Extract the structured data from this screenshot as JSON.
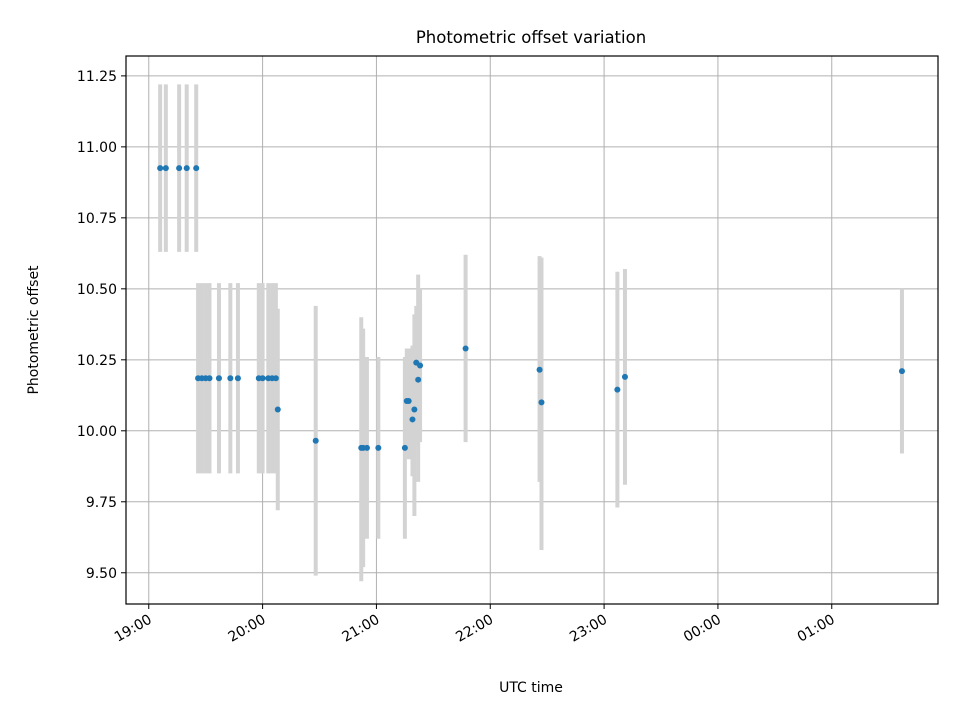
{
  "chart_data": {
    "type": "scatter",
    "title": "Photometric offset variation",
    "xlabel": "UTC time",
    "ylabel": "Photometric offset",
    "x_axis": "time",
    "xlim": [
      "18:48",
      "01:56"
    ],
    "ylim": [
      9.39,
      11.32
    ],
    "grid": true,
    "x_ticks": [
      {
        "value": "19:00",
        "label": "19:00"
      },
      {
        "value": "20:00",
        "label": "20:00"
      },
      {
        "value": "21:00",
        "label": "21:00"
      },
      {
        "value": "22:00",
        "label": "22:00"
      },
      {
        "value": "23:00",
        "label": "23:00"
      },
      {
        "value": "00:00",
        "label": "00:00"
      },
      {
        "value": "01:00",
        "label": "01:00"
      }
    ],
    "y_ticks": [
      9.5,
      9.75,
      10.0,
      10.25,
      10.5,
      10.75,
      11.0,
      11.25
    ],
    "y_tick_labels": [
      "9.50",
      "9.75",
      "10.00",
      "10.25",
      "10.50",
      "10.75",
      "11.00",
      "11.25"
    ],
    "series": [
      {
        "marker_color": "#1f77b4",
        "errorbar_color": "#d3d3d3",
        "points": [
          {
            "t": "19:06",
            "y": 10.925,
            "lo": 10.63,
            "hi": 11.22
          },
          {
            "t": "19:09",
            "y": 10.925,
            "lo": 10.63,
            "hi": 11.22
          },
          {
            "t": "19:16",
            "y": 10.925,
            "lo": 10.63,
            "hi": 11.22
          },
          {
            "t": "19:20",
            "y": 10.925,
            "lo": 10.63,
            "hi": 11.22
          },
          {
            "t": "19:25",
            "y": 10.925,
            "lo": 10.63,
            "hi": 11.22
          },
          {
            "t": "19:26",
            "y": 10.185,
            "lo": 9.85,
            "hi": 10.52
          },
          {
            "t": "19:28",
            "y": 10.185,
            "lo": 9.85,
            "hi": 10.52
          },
          {
            "t": "19:30",
            "y": 10.185,
            "lo": 9.85,
            "hi": 10.52
          },
          {
            "t": "19:32",
            "y": 10.185,
            "lo": 9.85,
            "hi": 10.52
          },
          {
            "t": "19:37",
            "y": 10.185,
            "lo": 9.85,
            "hi": 10.52
          },
          {
            "t": "19:43",
            "y": 10.185,
            "lo": 9.85,
            "hi": 10.52
          },
          {
            "t": "19:47",
            "y": 10.185,
            "lo": 9.85,
            "hi": 10.52
          },
          {
            "t": "19:58",
            "y": 10.185,
            "lo": 9.85,
            "hi": 10.52
          },
          {
            "t": "20:00",
            "y": 10.185,
            "lo": 9.85,
            "hi": 10.52
          },
          {
            "t": "20:03",
            "y": 10.185,
            "lo": 9.85,
            "hi": 10.52
          },
          {
            "t": "20:05",
            "y": 10.185,
            "lo": 9.85,
            "hi": 10.52
          },
          {
            "t": "20:07",
            "y": 10.185,
            "lo": 9.85,
            "hi": 10.52
          },
          {
            "t": "20:08",
            "y": 10.075,
            "lo": 9.72,
            "hi": 10.43
          },
          {
            "t": "20:28",
            "y": 9.965,
            "lo": 9.49,
            "hi": 10.44
          },
          {
            "t": "20:52",
            "y": 9.94,
            "lo": 9.47,
            "hi": 10.4
          },
          {
            "t": "20:53",
            "y": 9.94,
            "lo": 9.52,
            "hi": 10.36
          },
          {
            "t": "20:55",
            "y": 9.94,
            "lo": 9.62,
            "hi": 10.26
          },
          {
            "t": "21:01",
            "y": 9.94,
            "lo": 9.62,
            "hi": 10.26
          },
          {
            "t": "21:15",
            "y": 9.94,
            "lo": 9.62,
            "hi": 10.26
          },
          {
            "t": "21:16",
            "y": 10.105,
            "lo": 9.92,
            "hi": 10.29
          },
          {
            "t": "21:17",
            "y": 10.105,
            "lo": 9.9,
            "hi": 10.29
          },
          {
            "t": "21:19",
            "y": 10.04,
            "lo": 9.84,
            "hi": 10.3
          },
          {
            "t": "21:20",
            "y": 10.075,
            "lo": 9.7,
            "hi": 10.41
          },
          {
            "t": "21:21",
            "y": 10.24,
            "lo": 9.95,
            "hi": 10.44
          },
          {
            "t": "21:22",
            "y": 10.18,
            "lo": 9.82,
            "hi": 10.55
          },
          {
            "t": "21:23",
            "y": 10.23,
            "lo": 9.96,
            "hi": 10.5
          },
          {
            "t": "21:47",
            "y": 10.29,
            "lo": 9.96,
            "hi": 10.62
          },
          {
            "t": "22:26",
            "y": 10.215,
            "lo": 9.82,
            "hi": 10.615
          },
          {
            "t": "22:27",
            "y": 10.1,
            "lo": 9.58,
            "hi": 10.61
          },
          {
            "t": "23:07",
            "y": 10.145,
            "lo": 9.73,
            "hi": 10.56
          },
          {
            "t": "23:11",
            "y": 10.19,
            "lo": 9.81,
            "hi": 10.57
          },
          {
            "t": "01:37",
            "y": 10.21,
            "lo": 9.92,
            "hi": 10.5
          }
        ]
      }
    ]
  }
}
